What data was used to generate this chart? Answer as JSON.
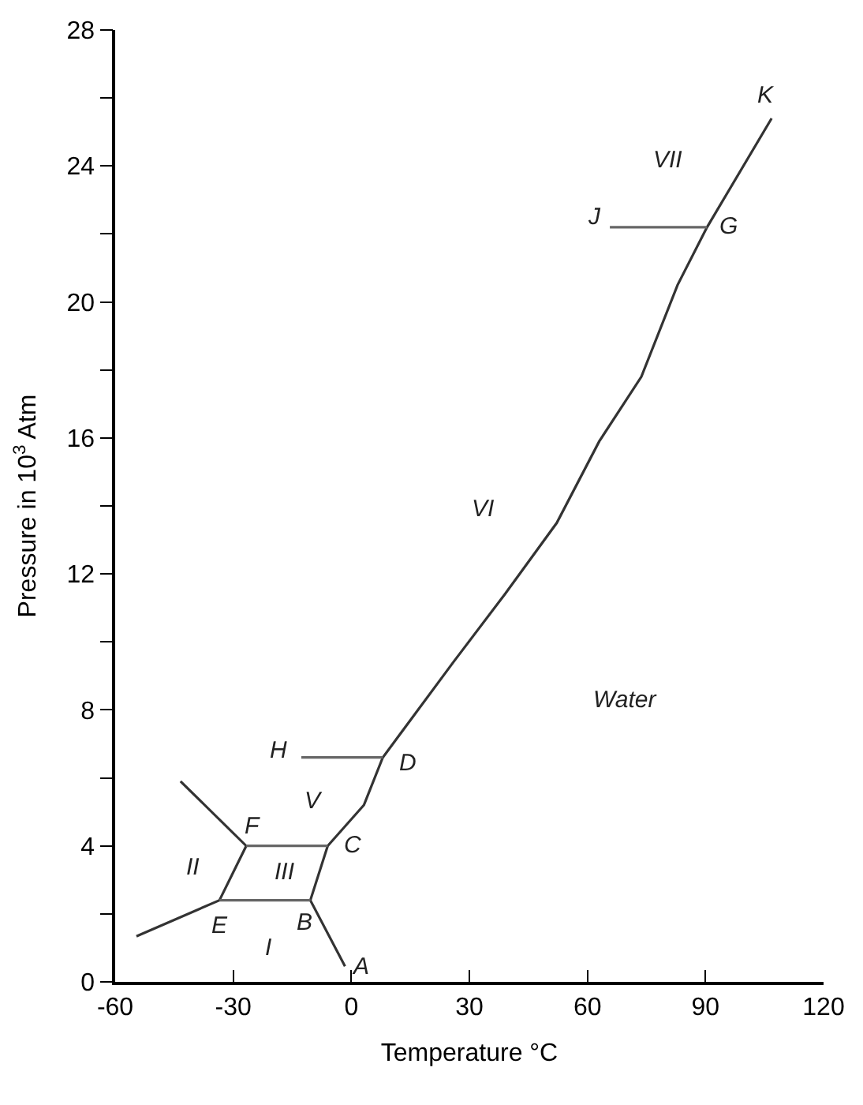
{
  "chart_data": {
    "type": "line",
    "xlabel": "Temperature °C",
    "ylabel": "Pressure in 10$^{3}$ Atm",
    "xlim": [
      -60,
      120
    ],
    "xticks": [
      -60,
      -30,
      0,
      30,
      60,
      90,
      120
    ],
    "ylim": [
      0,
      28
    ],
    "yticks": [
      0,
      {
        "value": 2,
        "label": null
      },
      4,
      {
        "value": 6,
        "label": null
      },
      8,
      {
        "value": 10,
        "label": null
      },
      12,
      {
        "value": 14,
        "label": null
      },
      16,
      {
        "value": 18,
        "label": null
      },
      20,
      {
        "value": 22,
        "label": null
      },
      24,
      {
        "value": 26,
        "label": null
      },
      28
    ],
    "marker": "none",
    "line_style": "solid",
    "series": [
      {
        "color": "#333333",
        "x": [
          -1.6,
          -10.4,
          -6,
          3.2,
          8,
          25.9,
          39,
          52.2,
          63,
          73.7,
          82.9,
          90.4,
          106.8
        ],
        "values": [
          0.46,
          2.4,
          4.0,
          5.2,
          6.6,
          9.4,
          11.4,
          13.5,
          15.9,
          17.8,
          20.5,
          22.2,
          25.4
        ]
      },
      {
        "color": "#333333",
        "x": [
          -54.6,
          -33.5,
          -26.7,
          -43.4
        ],
        "values": [
          1.34,
          2.4,
          4.0,
          5.9
        ]
      },
      {
        "color": "#666666",
        "x": [
          -10.4,
          -33.5
        ],
        "values": [
          2.4,
          2.4
        ]
      },
      {
        "color": "#666666",
        "x": [
          -26.7,
          -6
        ],
        "values": [
          4.0,
          4.0
        ]
      },
      {
        "color": "#666666",
        "x": [
          8,
          -12.7
        ],
        "values": [
          6.6,
          6.6
        ]
      },
      {
        "color": "#666666",
        "x": [
          90.4,
          65.7
        ],
        "values": [
          22.2,
          22.2
        ]
      }
    ],
    "annotations": [
      {
        "text": "K",
        "x": 106.8,
        "y": 25.4
      },
      {
        "text": "J",
        "x": 65.7,
        "y": 22.2
      },
      {
        "text": "G",
        "x": 90.4,
        "y": 22.2
      },
      {
        "text": "H",
        "x": -12.7,
        "y": 6.6
      },
      {
        "text": "D",
        "x": 8,
        "y": 6.6
      },
      {
        "text": "F",
        "x": -26.7,
        "y": 4.0
      },
      {
        "text": "C",
        "x": -6,
        "y": 4.0
      },
      {
        "text": "E",
        "x": -33.5,
        "y": 2.4
      },
      {
        "text": "B",
        "x": -10.4,
        "y": 2.4
      },
      {
        "text": "A",
        "x": -1.6,
        "y": 0.46
      },
      "VII",
      "VI",
      "Water",
      "V",
      "II",
      "III",
      "I"
    ]
  }
}
